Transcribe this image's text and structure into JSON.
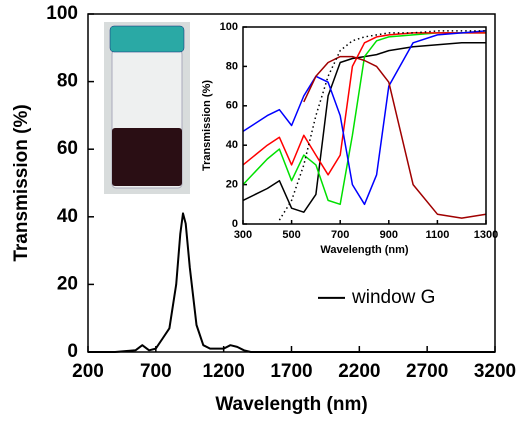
{
  "chart_data": [
    {
      "type": "line",
      "xlabel": "Wavelength (nm)",
      "ylabel": "Transmission (%)",
      "xlim": [
        200,
        3200
      ],
      "ylim": [
        0,
        100
      ],
      "xticks": [
        200,
        700,
        1200,
        1700,
        2200,
        2700,
        3200
      ],
      "yticks": [
        0,
        20,
        40,
        60,
        80,
        100
      ],
      "legend": "right",
      "x": [
        200,
        400,
        550,
        600,
        650,
        700,
        750,
        800,
        850,
        880,
        900,
        920,
        950,
        1000,
        1050,
        1100,
        1200,
        1250,
        1300,
        1350,
        1400,
        1600,
        3200
      ],
      "series": [
        {
          "name": "window G",
          "color": "#000000",
          "values": [
            0,
            0,
            0.5,
            2,
            0.5,
            1,
            4,
            7,
            20,
            35,
            41,
            38,
            25,
            8,
            2,
            1,
            1,
            2,
            1.5,
            0.5,
            0,
            0,
            0
          ]
        }
      ]
    },
    {
      "type": "line",
      "xlabel": "Wavelength (nm)",
      "ylabel": "Transmission (%)",
      "xlim": [
        300,
        1300
      ],
      "ylim": [
        0,
        100
      ],
      "xticks": [
        300,
        500,
        700,
        900,
        1100,
        1300
      ],
      "yticks": [
        0,
        20,
        40,
        60,
        80,
        100
      ],
      "x": [
        300,
        400,
        450,
        500,
        550,
        600,
        650,
        700,
        750,
        800,
        850,
        900,
        1000,
        1100,
        1200,
        1300
      ],
      "series": [
        {
          "color": "#000000",
          "values": [
            12,
            18,
            22,
            8,
            6,
            15,
            65,
            82,
            84,
            85,
            86,
            88,
            90,
            91,
            92,
            92
          ]
        },
        {
          "color": "#00e000",
          "values": [
            20,
            33,
            38,
            22,
            35,
            30,
            12,
            10,
            45,
            85,
            93,
            95,
            96,
            97,
            97,
            97
          ]
        },
        {
          "color": "#ff0000",
          "values": [
            30,
            40,
            44,
            30,
            45,
            35,
            25,
            35,
            80,
            92,
            95,
            96,
            97,
            97,
            97,
            97
          ]
        },
        {
          "color": "#0000ff",
          "values": [
            47,
            55,
            58,
            50,
            65,
            75,
            72,
            55,
            20,
            10,
            25,
            70,
            92,
            96,
            97,
            98
          ]
        },
        {
          "color": "#a00000",
          "values": [
            null,
            null,
            null,
            null,
            62,
            75,
            82,
            85,
            85,
            83,
            80,
            72,
            20,
            5,
            3,
            5
          ]
        },
        {
          "color": "#000000",
          "line_style": "dotted",
          "values": [
            null,
            null,
            2,
            12,
            30,
            55,
            75,
            88,
            93,
            95,
            96,
            97,
            97,
            98,
            98,
            98
          ]
        }
      ]
    }
  ]
}
